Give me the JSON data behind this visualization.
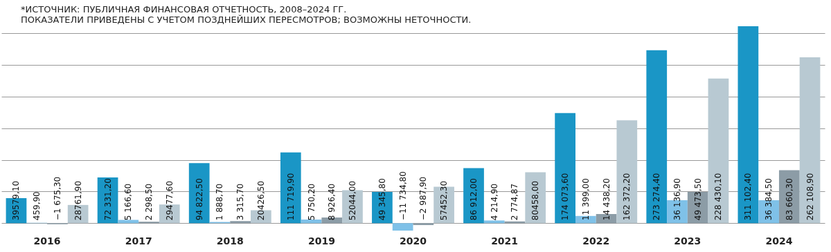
{
  "chart_data": {
    "type": "bar",
    "annotations": [
      "*ИСТОЧНИК: ПУБЛИЧНАЯ ФИНАНСОВАЯ ОТЧЕТНОСТЬ, 2008–2024 ГГ.",
      "ПОКАЗАТЕЛИ ПРИВЕДЕНЫ С УЧЕТОМ ПОЗДНЕЙШИХ ПЕРЕСМОТРОВ; ВОЗМОЖНЫ НЕТОЧНОСТИ."
    ],
    "categories": [
      "2016",
      "2017",
      "2018",
      "2019",
      "2020",
      "2021",
      "2022",
      "2023",
      "2024"
    ],
    "series": [
      {
        "color": "#1a96c6",
        "values": [
          39579.1,
          72331.2,
          94822.5,
          111719.9,
          49345.8,
          86912.0,
          174073.6,
          273274.4,
          311102.4
        ],
        "value_labels": [
          "39579,10",
          "72 331,20",
          "94 822,50",
          "111 719,90",
          "49 345,80",
          "86 912,00",
          "174 073,60",
          "273 274,40",
          "311 102,40"
        ]
      },
      {
        "color": "#7fc1e8",
        "values": [
          459.9,
          5166.6,
          1888.7,
          5750.2,
          -11734.8,
          4214.9,
          11399.0,
          36136.9,
          36384.5
        ],
        "value_labels": [
          "459,90",
          "5 166,60",
          "1 888,70",
          "5 750,20",
          "−11 734,80",
          "4 214,90",
          "11 399,00",
          "36 136,90",
          "36 384,50"
        ]
      },
      {
        "color": "#8c9ca6",
        "values": [
          -1675.3,
          2298.5,
          3315.7,
          8926.4,
          -2987.9,
          2774.87,
          14438.2,
          49473.5,
          83660.3
        ],
        "value_labels": [
          "−1 675,30",
          "2 298,50",
          "3 315,70",
          "8 926,40",
          "−2 987,90",
          "2 774,87",
          "14 438,20",
          "49 473,50",
          "83 660,30"
        ]
      },
      {
        "color": "#b8c9d2",
        "values": [
          28761.9,
          29477.6,
          20426.5,
          52044.0,
          57452.3,
          80458.0,
          162372.2,
          228430.1,
          262108.9
        ],
        "value_labels": [
          "28761,90",
          "29477,60",
          "20426,50",
          "52044,00",
          "57452,30",
          "80458,00",
          "162 372,20",
          "228 430,10",
          "262 108,90"
        ]
      }
    ],
    "yticks": [
      {
        "value": 0,
        "label": null
      },
      {
        "value": 50000,
        "label": null
      },
      {
        "value": 100000,
        "label": null
      },
      {
        "value": 150000,
        "label": null
      },
      {
        "value": 200000,
        "label": null
      },
      {
        "value": 250000,
        "label": null
      },
      {
        "value": 300000,
        "label": null
      }
    ],
    "grid": "y",
    "tick_labels": "x"
  }
}
